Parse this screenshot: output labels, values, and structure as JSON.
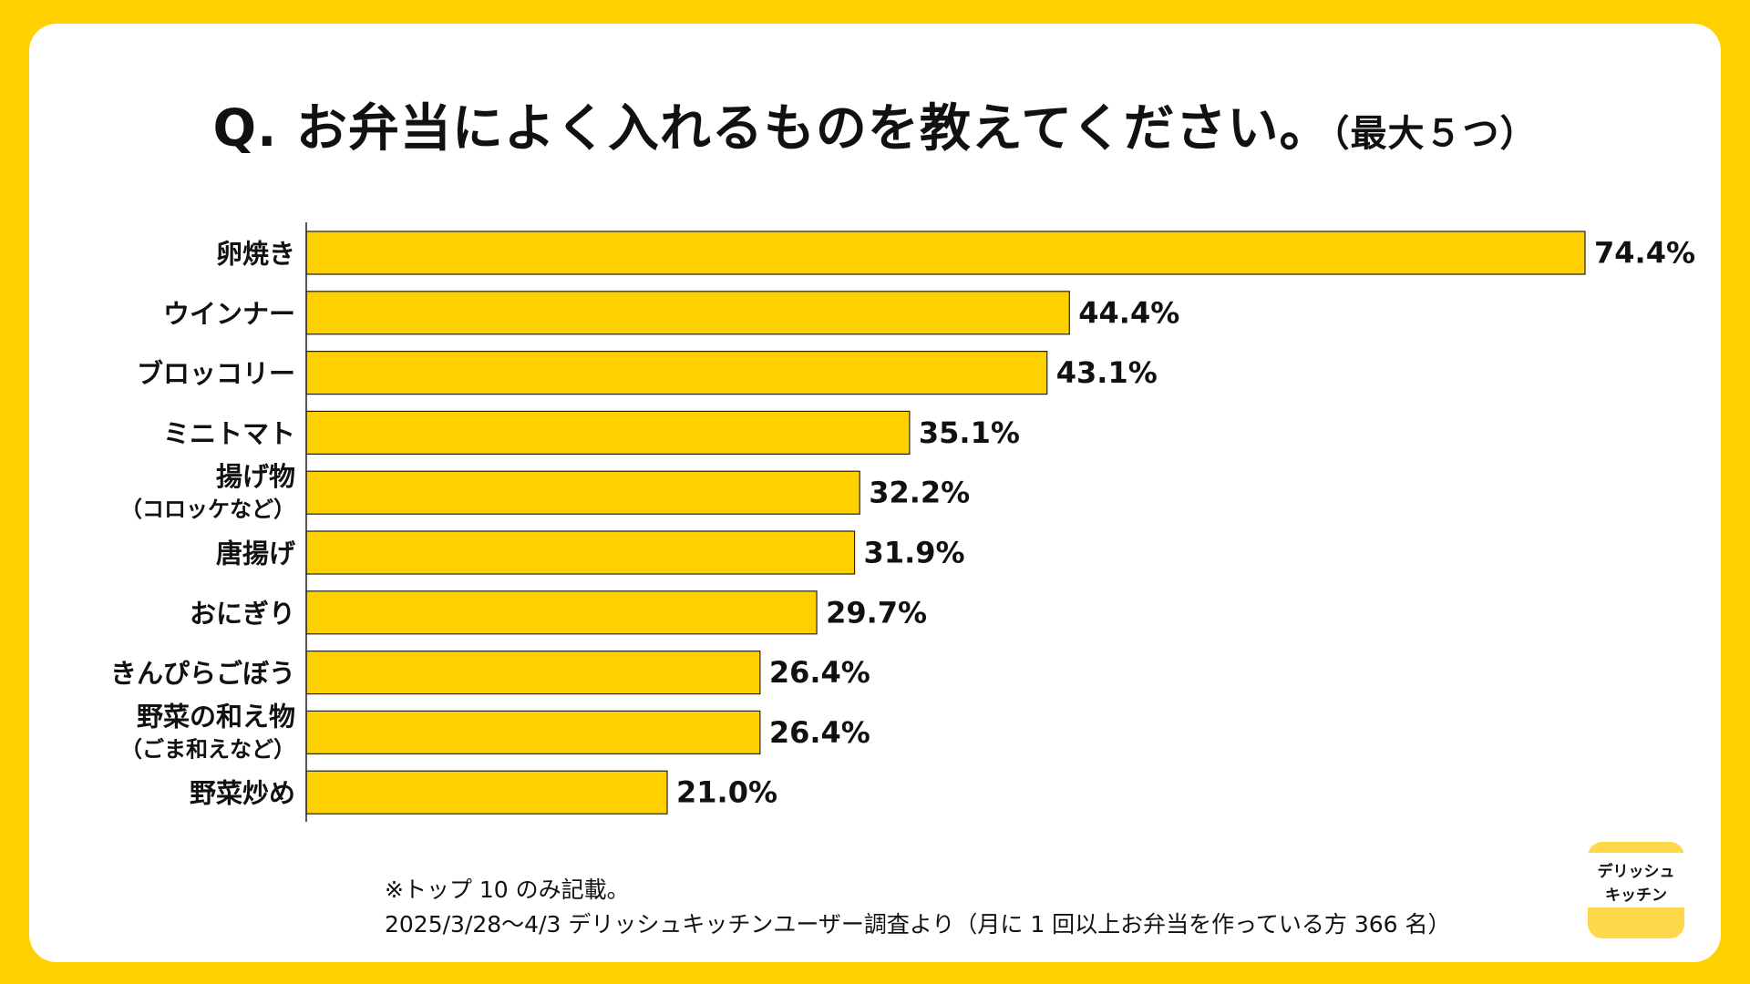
{
  "title": {
    "main": "Q. お弁当によく入れるものを教えてください。",
    "sub": "（最大５つ）"
  },
  "chart_data": {
    "type": "bar",
    "orientation": "horizontal",
    "categories": [
      {
        "label": "卵焼き",
        "sub": ""
      },
      {
        "label": "ウインナー",
        "sub": ""
      },
      {
        "label": "ブロッコリー",
        "sub": ""
      },
      {
        "label": "ミニトマト",
        "sub": ""
      },
      {
        "label": "揚げ物",
        "sub": "（コロッケなど）"
      },
      {
        "label": "唐揚げ",
        "sub": ""
      },
      {
        "label": "おにぎり",
        "sub": ""
      },
      {
        "label": "きんぴらごぼう",
        "sub": ""
      },
      {
        "label": "野菜の和え物",
        "sub": "（ごま和えなど）"
      },
      {
        "label": "野菜炒め",
        "sub": ""
      }
    ],
    "values": [
      74.4,
      44.4,
      43.1,
      35.1,
      32.2,
      31.9,
      29.7,
      26.4,
      26.4,
      21.0
    ],
    "value_labels": [
      "74.4%",
      "44.4%",
      "43.1%",
      "35.1%",
      "32.2%",
      "31.9%",
      "29.7%",
      "26.4%",
      "26.4%",
      "21.0%"
    ],
    "unit": "%",
    "xlim": [
      0,
      74.4
    ],
    "bar_color": "#FFD000",
    "bar_edge_color": "#222222"
  },
  "notes": {
    "line1": "※トップ 10 のみ記載。",
    "line2": "2025/3/28〜4/3 デリッシュキッチンユーザー調査より（月に 1 回以上お弁当を作っている方 366 名）"
  },
  "logo": {
    "line1": "デリッシュ",
    "line2": "キッチン"
  }
}
